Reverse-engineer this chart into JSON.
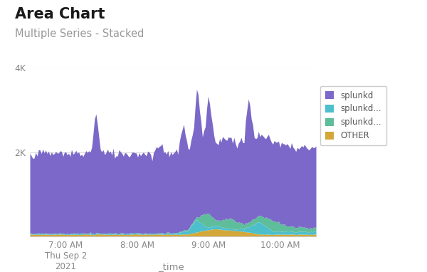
{
  "title": "Area Chart",
  "subtitle": "Multiple Series - Stacked",
  "xlabel": "_time",
  "background_color": "#ffffff",
  "ylim": [
    0,
    4000
  ],
  "legend_labels": [
    "splunkd",
    "splunkd...",
    "splunkd...",
    "OTHER"
  ],
  "colors": [
    "#7B68C8",
    "#4DBFCC",
    "#5EBD9B",
    "#D4A838"
  ],
  "x_tick_labels": [
    "7:00 AM\nThu Sep 2\n2021",
    "8:00 AM",
    "9:00 AM",
    "10:00 AM"
  ],
  "n_points": 200,
  "seed": 7
}
